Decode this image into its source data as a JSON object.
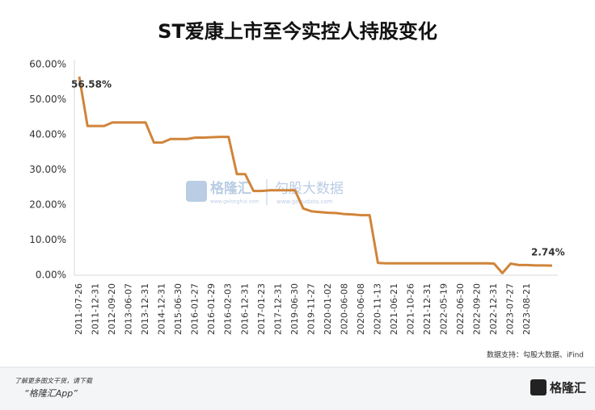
{
  "chart_data": {
    "type": "line",
    "title": "ST爱康上市至今实控人持股变化",
    "categories": [
      "2011-07-26",
      null,
      "2011-12-31",
      null,
      "2012-09-20",
      null,
      "2013-06-07",
      null,
      "2013-12-31",
      null,
      "2014-12-31",
      null,
      "2015-06-30",
      null,
      "2016-01-27",
      null,
      "2016-01-29",
      null,
      "2016-02-03",
      null,
      "2016-12-31",
      null,
      "2017-01-23",
      null,
      "2017-12-31",
      null,
      "2019-06-30",
      null,
      "2019-11-27",
      null,
      "2020-01-02",
      null,
      "2020-06-08",
      null,
      "2020-06-08",
      null,
      "2020-11-13",
      null,
      "2021-06-21",
      null,
      "2021-10-26",
      null,
      "2021-12-31",
      null,
      "2022-05-19",
      null,
      "2022-06-30",
      null,
      "2022-09-20",
      null,
      "2022-12-31",
      null,
      "2023-07-27",
      null,
      "2023-08-21",
      null,
      null,
      null
    ],
    "series": [
      {
        "name": "实控人持股",
        "color": "#d0843a",
        "values": [
          56.58,
          42.5,
          42.5,
          42.5,
          43.5,
          43.5,
          43.5,
          43.5,
          43.5,
          37.8,
          37.8,
          38.8,
          38.8,
          38.8,
          39.2,
          39.2,
          39.3,
          39.4,
          39.4,
          28.8,
          28.8,
          24,
          24,
          24.2,
          24.2,
          24.2,
          24.2,
          19,
          18.2,
          18,
          17.8,
          17.7,
          17.4,
          17.3,
          17.1,
          17.1,
          3.5,
          3.4,
          3.4,
          3.4,
          3.4,
          3.4,
          3.4,
          3.4,
          3.4,
          3.4,
          3.4,
          3.4,
          3.4,
          3.4,
          3.3,
          0.6,
          3.3,
          2.9,
          2.9,
          2.8,
          2.8,
          2.74
        ],
        "value_labels": [
          "56.58%",
          null,
          null,
          null,
          null,
          null,
          null,
          null,
          null,
          null,
          null,
          null,
          null,
          null,
          null,
          null,
          null,
          null,
          null,
          null,
          null,
          null,
          null,
          null,
          null,
          null,
          null,
          null,
          null,
          null,
          null,
          null,
          null,
          null,
          null,
          null,
          null,
          null,
          null,
          null,
          null,
          null,
          null,
          null,
          null,
          null,
          null,
          null,
          null,
          null,
          null,
          null,
          null,
          null,
          null,
          null,
          null,
          "2.74%"
        ]
      }
    ],
    "ylim": [
      0,
      60
    ],
    "yticks": [
      {
        "value": 0,
        "label": "0.00%"
      },
      {
        "value": 10,
        "label": "10.00%"
      },
      {
        "value": 20,
        "label": "20.00%"
      },
      {
        "value": 30,
        "label": "30.00%"
      },
      {
        "value": 40,
        "label": "40.00%"
      },
      {
        "value": 50,
        "label": "50.00%"
      },
      {
        "value": 60,
        "label": "60.00%"
      }
    ],
    "grid": false,
    "source": "数据支持：勾股大数据、iFind"
  },
  "watermark": {
    "brand": "格隆汇",
    "brand_url": "www.gelonghui.com",
    "partner": "勾股大数据",
    "partner_url": "www.gogudata.com"
  },
  "footer": {
    "line1": "了解更多图文干货，请下载",
    "line2": "“格隆汇App”",
    "logo": "格隆汇"
  }
}
